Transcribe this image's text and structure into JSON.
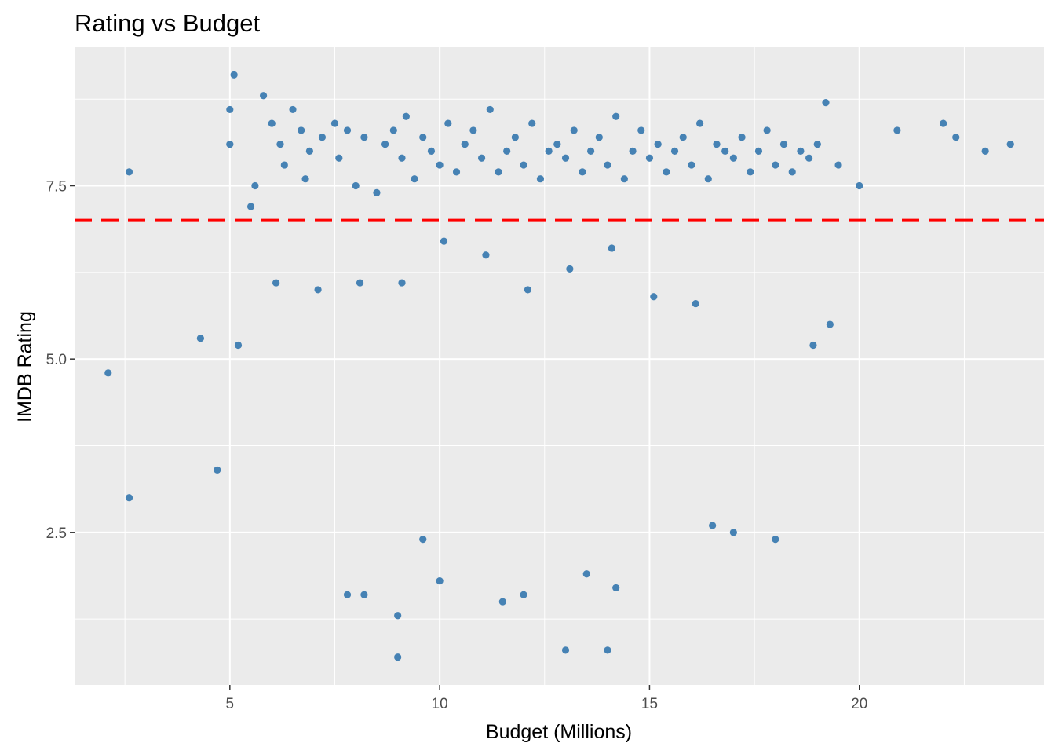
{
  "chart_data": {
    "type": "scatter",
    "title": "Rating vs Budget",
    "xlabel": "Budget (Millions)",
    "ylabel": "IMDB Rating",
    "xlim": [
      1.3,
      24.4
    ],
    "ylim": [
      0.3,
      9.5
    ],
    "x_ticks": [
      5,
      10,
      15,
      20
    ],
    "x_tick_labels": [
      "5",
      "10",
      "15",
      "20"
    ],
    "y_ticks": [
      2.5,
      5.0,
      7.5
    ],
    "y_tick_labels": [
      "2.5",
      "5.0",
      "7.5"
    ],
    "grid": true,
    "legend": "none",
    "reference_line": {
      "y": 7.0,
      "style": "dashed",
      "color": "#ff0000"
    },
    "colors": {
      "points": "#4682b4",
      "panel": "#ebebeb",
      "grid": "#ffffff",
      "reference_line": "#ff0000"
    },
    "series": [
      {
        "x": [
          2.1,
          2.6,
          2.6,
          5.0,
          5.0,
          5.1,
          5.5,
          5.6,
          5.8,
          6.0,
          6.2,
          6.3,
          6.5,
          6.7,
          6.8,
          6.9,
          7.2,
          7.5,
          7.6,
          7.8,
          8.0,
          8.2,
          8.5,
          8.7,
          8.9,
          9.1,
          9.2,
          9.4,
          9.6,
          9.8,
          10.0,
          10.2,
          10.4,
          10.6,
          10.8,
          11.0,
          11.2,
          11.4,
          11.6,
          11.8,
          12.0,
          12.2,
          12.4,
          12.6,
          12.8,
          13.0,
          13.2,
          13.4,
          13.6,
          13.8,
          14.0,
          14.2,
          14.4,
          14.6,
          14.8,
          15.0,
          15.2,
          15.4,
          15.6,
          15.8,
          16.0,
          16.2,
          16.4,
          16.6,
          16.8,
          17.0,
          17.2,
          17.4,
          17.6,
          17.8,
          18.0,
          18.2,
          18.4,
          18.6,
          18.8,
          19.0,
          19.2,
          19.5,
          20.0,
          20.9,
          22.0,
          22.3,
          23.0,
          23.6,
          9.0,
          8.2,
          10.0,
          13.0,
          14.0,
          9.0,
          14.2,
          17.0,
          18.0,
          12.0,
          11.5,
          16.5,
          13.5,
          7.8,
          9.6,
          19.3,
          18.9,
          4.3,
          4.7,
          5.2,
          6.1,
          7.1,
          12.1,
          13.1,
          15.1,
          16.1,
          10.1,
          11.1,
          8.1,
          9.1,
          14.1
        ],
        "y": [
          4.8,
          7.7,
          3.0,
          8.6,
          8.1,
          9.1,
          7.2,
          7.5,
          8.8,
          8.4,
          8.1,
          7.8,
          8.6,
          8.3,
          7.6,
          8.0,
          8.2,
          8.4,
          7.9,
          8.3,
          7.5,
          8.2,
          7.4,
          8.1,
          8.3,
          7.9,
          8.5,
          7.6,
          8.2,
          8.0,
          7.8,
          8.4,
          7.7,
          8.1,
          8.3,
          7.9,
          8.6,
          7.7,
          8.0,
          8.2,
          7.8,
          8.4,
          7.6,
          8.0,
          8.1,
          7.9,
          8.3,
          7.7,
          8.0,
          8.2,
          7.8,
          8.5,
          7.6,
          8.0,
          8.3,
          7.9,
          8.1,
          7.7,
          8.0,
          8.2,
          7.8,
          8.4,
          7.6,
          8.1,
          8.0,
          7.9,
          8.2,
          7.7,
          8.0,
          8.3,
          7.8,
          8.1,
          7.7,
          8.0,
          7.9,
          8.1,
          8.7,
          7.8,
          7.5,
          8.3,
          8.4,
          8.2,
          8.0,
          8.1,
          0.7,
          1.6,
          1.8,
          0.8,
          0.8,
          1.3,
          1.7,
          2.5,
          2.4,
          1.6,
          1.5,
          2.6,
          1.9,
          1.6,
          2.4,
          5.5,
          5.2,
          5.3,
          3.4,
          5.2,
          6.1,
          6.0,
          6.0,
          6.3,
          5.9,
          5.8,
          6.7,
          6.5,
          6.1,
          6.1,
          6.6
        ],
        "color": "#4682b4"
      }
    ]
  }
}
